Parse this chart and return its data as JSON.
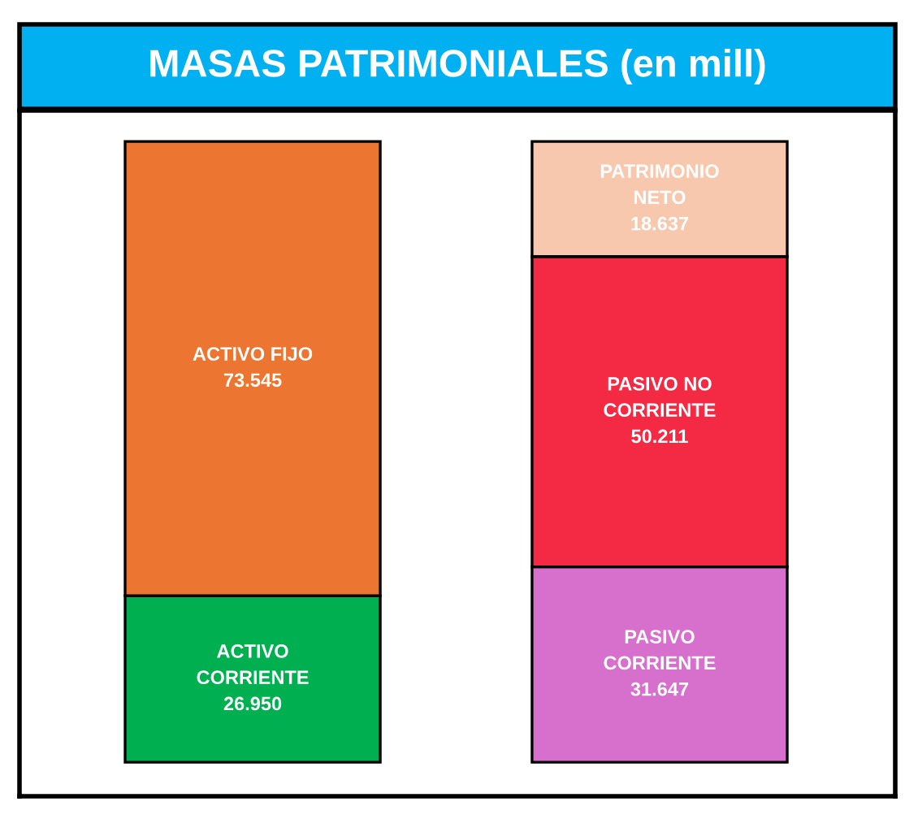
{
  "chart_data": {
    "type": "bar",
    "title": "MASAS PATRIMONIALES (en mill)",
    "stacked": true,
    "categories": [
      null,
      null
    ],
    "ylim": [
      -5500,
      105500
    ],
    "tick_labels": false,
    "grid": false,
    "legend": false,
    "series": [
      {
        "name": "ACTIVO CORRIENTE",
        "color": "#00b050",
        "values": [
          26950,
          null
        ],
        "value_labels": [
          "26.950",
          null
        ]
      },
      {
        "name": "ACTIVO FIJO",
        "color": "#ed7532",
        "values": [
          73545,
          null
        ],
        "value_labels": [
          "73.545",
          null
        ]
      },
      {
        "name": "PASIVO CORRIENTE",
        "color": "#d770cc",
        "values": [
          null,
          31647
        ],
        "value_labels": [
          null,
          "31.647"
        ]
      },
      {
        "name": "PASIVO NO CORRIENTE",
        "color": "#f42a45",
        "values": [
          null,
          50211
        ],
        "value_labels": [
          null,
          "50.211"
        ]
      },
      {
        "name": "PATRIMONIO NETO",
        "color": "#f8c8ae",
        "values": [
          null,
          18637
        ],
        "value_labels": [
          null,
          "18.637"
        ]
      }
    ]
  }
}
